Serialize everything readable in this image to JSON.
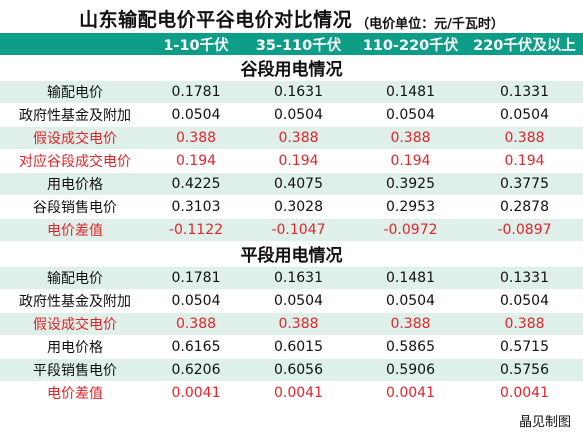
{
  "title": {
    "main": "山东输配电价平谷电价对比情况",
    "unit": "（电价单位：元/千瓦时）"
  },
  "columns": [
    "1-10千伏",
    "35-110千伏",
    "110-220千伏",
    "220千伏及以上"
  ],
  "sections": [
    {
      "title": "谷段用电情况",
      "rows": [
        {
          "label": "输配电价",
          "values": [
            "0.1781",
            "0.1631",
            "0.1481",
            "0.1331"
          ]
        },
        {
          "label": "政府性基金及附加",
          "values": [
            "0.0504",
            "0.0504",
            "0.0504",
            "0.0504"
          ]
        },
        {
          "label": "假设成交电价",
          "values": [
            "0.388",
            "0.388",
            "0.388",
            "0.388"
          ]
        },
        {
          "label": "对应谷段成交电价",
          "values": [
            "0.194",
            "0.194",
            "0.194",
            "0.194"
          ]
        },
        {
          "label": "用电价格",
          "values": [
            "0.4225",
            "0.4075",
            "0.3925",
            "0.3775"
          ]
        },
        {
          "label": "谷段销售电价",
          "values": [
            "0.3103",
            "0.3028",
            "0.2953",
            "0.2878"
          ]
        },
        {
          "label": "电价差值",
          "values": [
            "-0.1122",
            "-0.1047",
            "-0.0972",
            "-0.0897"
          ]
        }
      ]
    },
    {
      "title": "平段用电情况",
      "rows": [
        {
          "label": "输配电价",
          "values": [
            "0.1781",
            "0.1631",
            "0.1481",
            "0.1331"
          ]
        },
        {
          "label": "政府性基金及附加",
          "values": [
            "0.0504",
            "0.0504",
            "0.0504",
            "0.0504"
          ]
        },
        {
          "label": "假设成交电价",
          "values": [
            "0.388",
            "0.388",
            "0.388",
            "0.388"
          ]
        },
        {
          "label": "用电价格",
          "values": [
            "0.6165",
            "0.6015",
            "0.5865",
            "0.5715"
          ]
        },
        {
          "label": "平段销售电价",
          "values": [
            "0.6206",
            "0.6056",
            "0.5906",
            "0.5756"
          ]
        },
        {
          "label": "电价差值",
          "values": [
            "0.0041",
            "0.0041",
            "0.0041",
            "0.0041"
          ]
        }
      ]
    }
  ],
  "footer": "晶见制图",
  "colors": {
    "header_bg": "#0e9e88",
    "row_stripe": "#dff0ea",
    "highlight_text": "#e0262b"
  }
}
